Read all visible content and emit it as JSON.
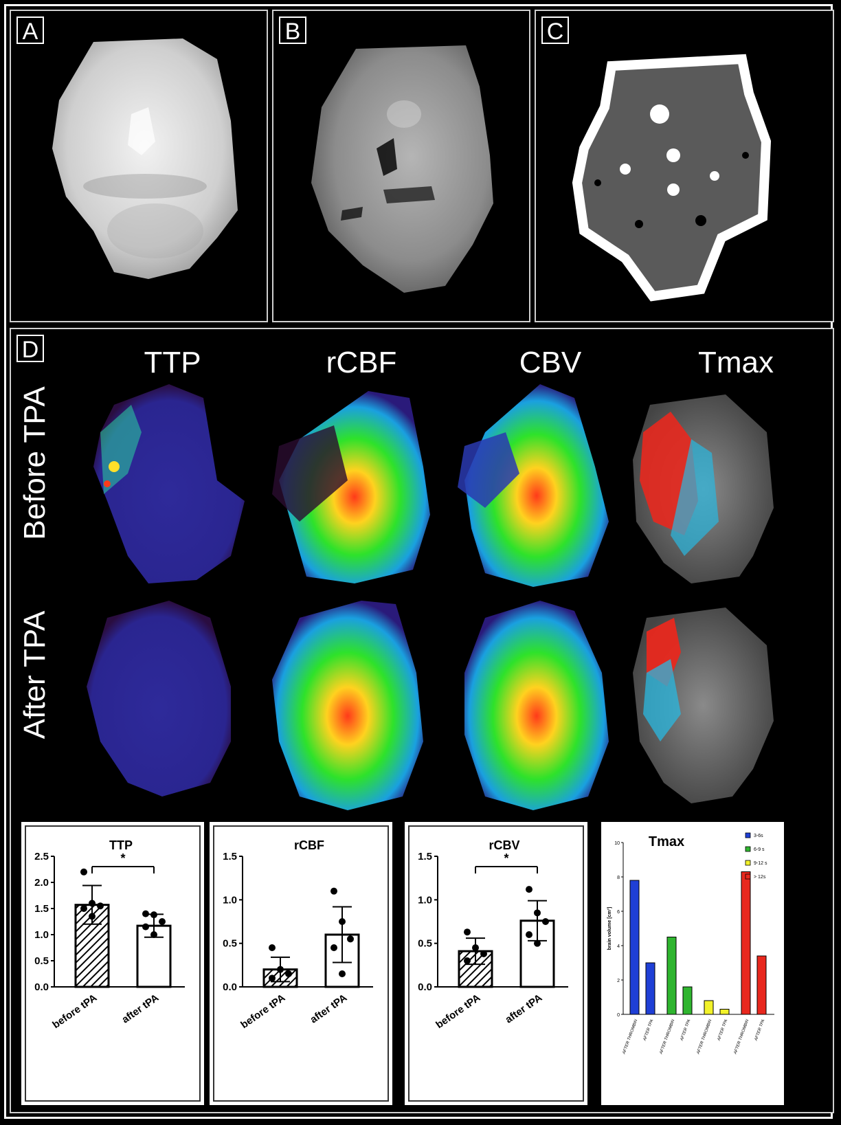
{
  "panels": {
    "a": {
      "label": "A"
    },
    "b": {
      "label": "B"
    },
    "c": {
      "label": "C"
    },
    "d": {
      "label": "D"
    }
  },
  "perfusion": {
    "columns": [
      "TTP",
      "rCBF",
      "CBV",
      "Tmax"
    ],
    "rows": [
      "Before TPA",
      "After TPA"
    ]
  },
  "colors": {
    "tmax_3_6": "#1f3fd6",
    "tmax_6_9": "#2fb52f",
    "tmax_9_12": "#f2f22a",
    "tmax_gt12": "#e8281e"
  },
  "chart_data": [
    {
      "type": "bar",
      "title": "TTP",
      "categories": [
        "before tPA",
        "after tPA"
      ],
      "values": [
        1.57,
        1.17
      ],
      "error": [
        0.37,
        0.22
      ],
      "points": [
        [
          2.2,
          1.6,
          1.55,
          1.5,
          1.35
        ],
        [
          1.4,
          1.38,
          1.25,
          1.15,
          1.0
        ]
      ],
      "hatched": [
        true,
        false
      ],
      "significance": "*",
      "ylim": [
        0,
        2.5
      ],
      "yticks": [
        "0.0",
        "0.5",
        "1.0",
        "1.5",
        "2.0",
        "2.5"
      ]
    },
    {
      "type": "bar",
      "title": "rCBF",
      "categories": [
        "before tPA",
        "after tPA"
      ],
      "values": [
        0.2,
        0.6
      ],
      "error": [
        0.14,
        0.32
      ],
      "points": [
        [
          0.45,
          0.2,
          0.15,
          0.1
        ],
        [
          1.1,
          0.75,
          0.55,
          0.45,
          0.15
        ]
      ],
      "hatched": [
        true,
        false
      ],
      "significance": "",
      "ylim": [
        0,
        1.5
      ],
      "yticks": [
        "0.0",
        "0.5",
        "1.0",
        "1.5"
      ]
    },
    {
      "type": "bar",
      "title": "rCBV",
      "categories": [
        "before tPA",
        "after tPA"
      ],
      "values": [
        0.41,
        0.76
      ],
      "error": [
        0.15,
        0.23
      ],
      "points": [
        [
          0.63,
          0.45,
          0.38,
          0.3
        ],
        [
          1.12,
          0.85,
          0.75,
          0.6,
          0.5
        ]
      ],
      "hatched": [
        true,
        false
      ],
      "significance": "*",
      "ylim": [
        0,
        1.5
      ],
      "yticks": [
        "0.0",
        "0.5",
        "1.0",
        "1.5"
      ]
    },
    {
      "type": "bar",
      "title": "Tmax",
      "ylabel": "brain volume [cm³]",
      "ylim": [
        0,
        10
      ],
      "yticks": [
        "0",
        "2",
        "4",
        "6",
        "8",
        "10"
      ],
      "legend": [
        "3-6s",
        "6-9 s",
        "9-12 s",
        "> 12s"
      ],
      "groups": [
        {
          "color_key": "tmax_3_6",
          "categories": [
            "AFTER THROMBIN",
            "AFTER TPA"
          ],
          "values": [
            7.8,
            3.0
          ]
        },
        {
          "color_key": "tmax_6_9",
          "categories": [
            "AFTER THROMBIN",
            "AFTER TPA"
          ],
          "values": [
            4.5,
            1.6
          ]
        },
        {
          "color_key": "tmax_9_12",
          "categories": [
            "AFTER THROMBIN",
            "AFTER TPA"
          ],
          "values": [
            0.8,
            0.3
          ]
        },
        {
          "color_key": "tmax_gt12",
          "categories": [
            "AFTER THROMBIN",
            "AFTER TPA"
          ],
          "values": [
            8.3,
            3.4
          ]
        }
      ]
    }
  ]
}
